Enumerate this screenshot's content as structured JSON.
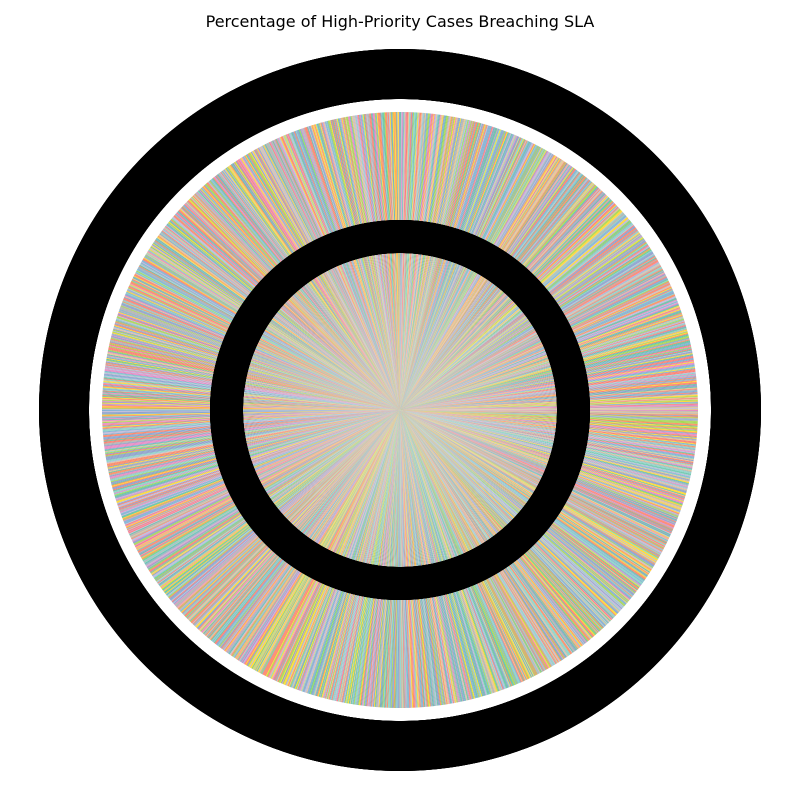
{
  "chart_data": {
    "type": "pie",
    "title": "Percentage of High-Priority Cases Breaching SLA",
    "slice_count": 2000,
    "palette": [
      "#66c2a5",
      "#fc8d62",
      "#8da0cb",
      "#e78ac3",
      "#a6d854",
      "#ffd92f",
      "#e5c494",
      "#b3b3b3",
      "#8dd3c7",
      "#fb8072",
      "#80b1d3",
      "#bebada"
    ],
    "label_color": "#000000",
    "note_for_values": "equal-size slices; individual labels are illegible due to overlap",
    "values": "equal"
  }
}
